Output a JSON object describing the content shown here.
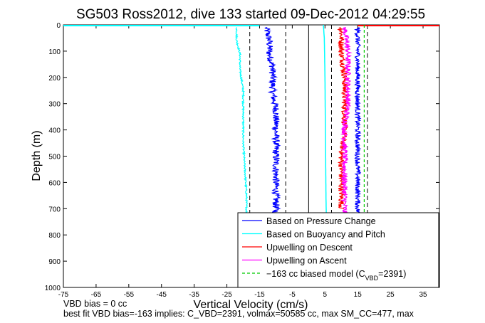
{
  "chart_data": {
    "type": "line",
    "title": "SG503 Ross2012, dive 133 started 09-Dec-2012 04:29:55",
    "xlabel": "Vertical Velocity (cm/s)",
    "ylabel": "Depth (m)",
    "xlim": [
      -75,
      40
    ],
    "ylim": [
      0,
      1000
    ],
    "y_reversed": true,
    "grid": false,
    "legend_position": "bottom-right",
    "x_ticks": [
      -75,
      -65,
      -55,
      -45,
      -35,
      -25,
      -15,
      -5,
      5,
      15,
      25,
      35
    ],
    "y_ticks": [
      0,
      100,
      200,
      300,
      400,
      500,
      600,
      700,
      800,
      900,
      1000
    ],
    "series": [
      {
        "name": "Based on Pressure Change",
        "color": "#0000ff",
        "noise": 1.1,
        "x": [
          -13,
          -12,
          -12,
          -11,
          -11,
          -11,
          -10,
          -10,
          -10,
          -10,
          -10,
          -10,
          -10
        ],
        "y": [
          10,
          60,
          110,
          160,
          200,
          260,
          320,
          380,
          440,
          500,
          580,
          660,
          720
        ]
      },
      {
        "name": "Based on Buoyancy and Pitch",
        "color": "#00ffff",
        "noise": 0.25,
        "x": [
          -22,
          -22,
          -21,
          -21,
          -20,
          -20,
          -20,
          -19.5,
          -19,
          -19
        ],
        "y": [
          10,
          60,
          110,
          170,
          250,
          350,
          450,
          550,
          650,
          720
        ]
      },
      {
        "name": "Upwelling on Descent",
        "color": "#ff0000",
        "noise": 0.9,
        "x": [
          10,
          10,
          11,
          11,
          11,
          10,
          10,
          10,
          10
        ],
        "y": [
          10,
          100,
          200,
          300,
          400,
          500,
          600,
          660,
          700
        ]
      },
      {
        "name": "Upwelling on Ascent",
        "color": "#ff00ff",
        "noise": 0.9,
        "x": [
          11,
          12,
          12,
          12,
          11,
          11,
          11,
          11
        ],
        "y": [
          10,
          100,
          200,
          300,
          400,
          500,
          600,
          720
        ]
      },
      {
        "name": "Blue right trace",
        "color": "#0000ff",
        "noise": 0.8,
        "x": [
          15,
          15,
          15,
          15,
          15,
          15,
          15,
          15
        ],
        "y": [
          10,
          100,
          200,
          300,
          400,
          500,
          600,
          720
        ]
      },
      {
        "name": "Buoyancy right trace",
        "color": "#00ffff",
        "noise": 0,
        "x": [
          4.5,
          4.8,
          5,
          5.1,
          5.2,
          5.3,
          5.4
        ],
        "y": [
          0,
          50,
          200,
          350,
          500,
          650,
          720
        ]
      }
    ],
    "surface_lines": [
      {
        "color": "#00ffff",
        "x": [
          -75,
          -15
        ],
        "y": [
          0,
          0
        ]
      },
      {
        "color": "#ff0000",
        "x": [
          15,
          40
        ],
        "y": [
          0,
          0
        ]
      }
    ],
    "biased_model": {
      "color": "#00cc00",
      "x": [
        17,
        17,
        17,
        17
      ],
      "y": [
        0,
        300,
        600,
        720
      ]
    },
    "reference_lines": [
      {
        "style": "dashed",
        "x": -18
      },
      {
        "style": "dashed",
        "x": -7
      },
      {
        "style": "solid",
        "x": 0
      },
      {
        "style": "dashed",
        "x": 7
      },
      {
        "style": "dashed",
        "x": 18
      }
    ],
    "legend": [
      {
        "label": "Based on Pressure Change",
        "color": "#0000ff",
        "style": "solid"
      },
      {
        "label": "Based on Buoyancy and Pitch",
        "color": "#00ffff",
        "style": "solid"
      },
      {
        "label": "Upwelling on Descent",
        "color": "#ff0000",
        "style": "solid"
      },
      {
        "label": "Upwelling on Ascent",
        "color": "#ff00ff",
        "style": "solid"
      },
      {
        "label": "−163 cc biased model (C",
        "sub": "VBD",
        "suffix": "=2391)",
        "color": "#00cc00",
        "style": "dashed"
      }
    ]
  },
  "footer": {
    "line1": "VBD bias = 0 cc",
    "line2": "best fit VBD bias=-163 implies: C_VBD=2391, volmax=50585 cc, max SM_CC=477, max"
  }
}
